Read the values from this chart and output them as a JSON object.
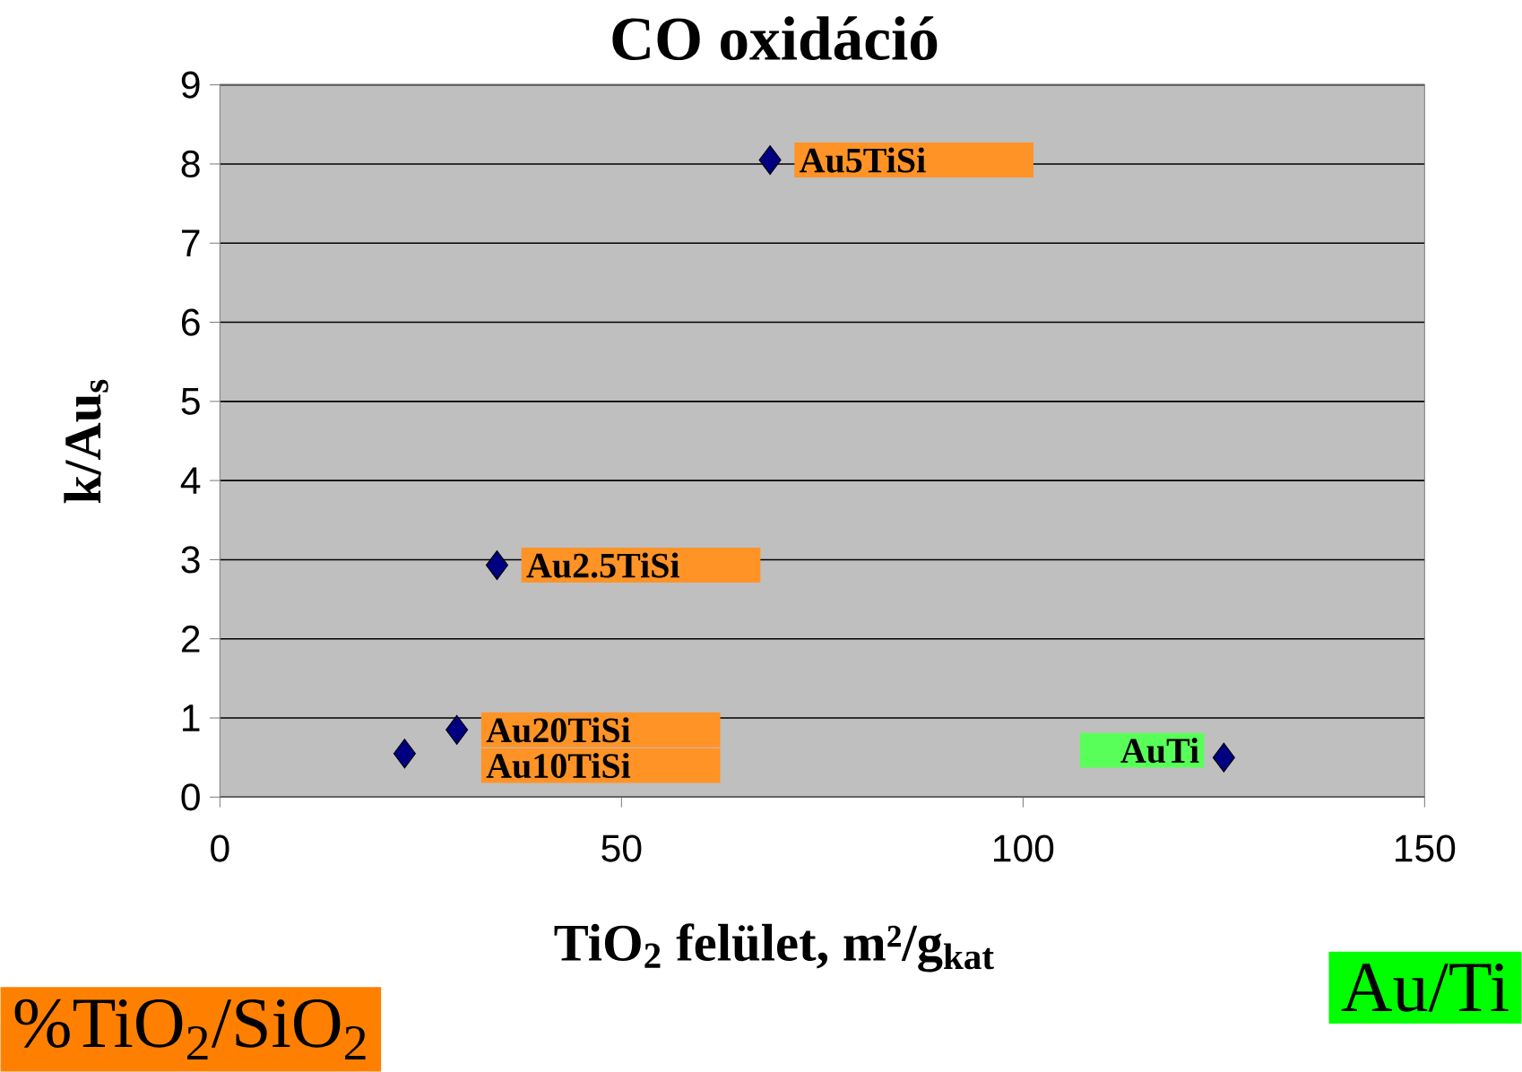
{
  "chart_data": {
    "type": "scatter",
    "title": "CO oxidáció",
    "xlabel": "TiO$_{2}$ felület, m²/g$_{kat}$",
    "ylabel": "k/Au$_{s}$",
    "x": [
      68.5,
      34.5,
      29.5,
      23,
      125
    ],
    "values": [
      8.05,
      2.93,
      0.85,
      0.55,
      0.5
    ],
    "color": "#000080",
    "marker": "diamond",
    "xlim": [
      0,
      150
    ],
    "xticks": [
      0,
      50,
      100,
      150
    ],
    "ylim": [
      0,
      9
    ],
    "yticks": [
      0,
      1,
      2,
      3,
      4,
      5,
      6,
      7,
      8,
      9
    ],
    "grid": "y",
    "annotations": [
      {
        "text": "Au5TiSi",
        "x": 68.5,
        "y": 8.05
      },
      {
        "text": "Au2.5TiSi",
        "x": 34.5,
        "y": 2.93
      },
      {
        "text": "Au20TiSi",
        "x": 29.5,
        "y": 0.85
      },
      {
        "text": "Au10TiSi",
        "x": 23,
        "y": 0.55
      },
      {
        "text": "AuTi",
        "x": 125,
        "y": 0.5
      },
      "%TiO$_{2}$/SiO$_{2}$",
      "Au/Ti"
    ]
  }
}
